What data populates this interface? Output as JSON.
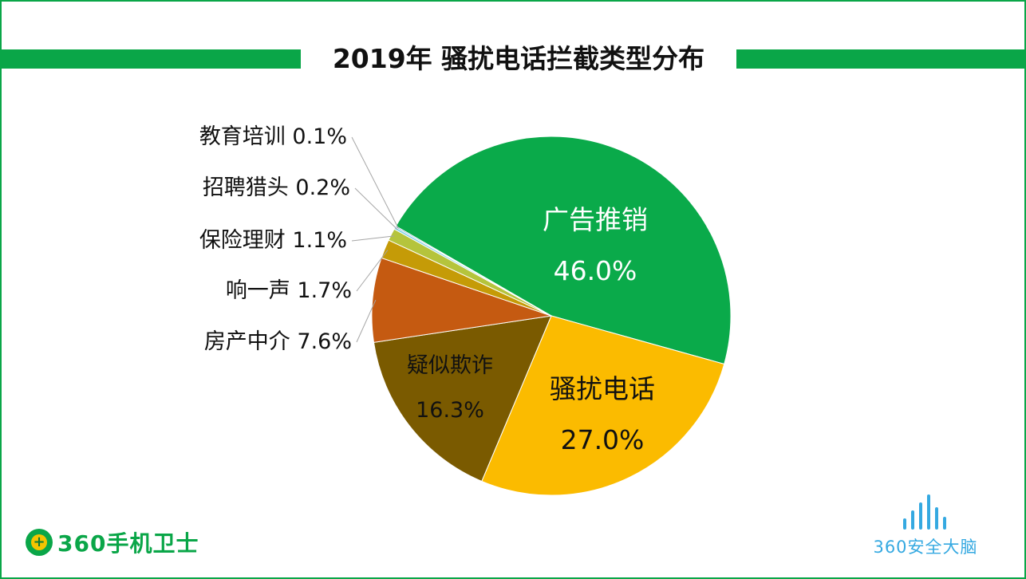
{
  "chart_data": {
    "type": "pie",
    "title": "2019年 骚扰电话拦截类型分布",
    "categories": [
      "广告推销",
      "骚扰电话",
      "疑似欺诈",
      "房产中介",
      "响一声",
      "保险理财",
      "招聘猎头",
      "教育培训"
    ],
    "values": [
      46.0,
      27.0,
      16.3,
      7.6,
      1.7,
      1.1,
      0.2,
      0.1
    ],
    "value_labels": [
      "46.0%",
      "27.0%",
      "16.3%",
      "7.6%",
      "1.7%",
      "1.1%",
      "0.2%",
      "0.1%"
    ],
    "colors": [
      "#0aaa4a",
      "#fbbb00",
      "#7a5a00",
      "#c55a11",
      "#c59b07",
      "#b5c43c",
      "#7fd1e8",
      "#2e75b6"
    ],
    "legend": "none",
    "label_style": "inside for large slices, outside with leader lines for small slices"
  },
  "logos": {
    "left_brand": "360手机卫士",
    "left_badge": "+",
    "right_brand": "360安全大脑"
  }
}
